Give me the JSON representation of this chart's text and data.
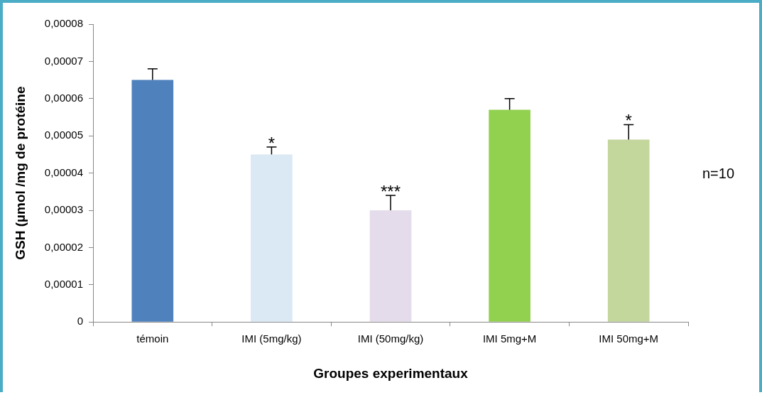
{
  "chart_data": {
    "type": "bar",
    "xlabel": "Groupes experimentaux",
    "ylabel": "GSH (µmol /mg de protéine",
    "categories": [
      "témoin",
      "IMI (5mg/kg)",
      "IMI (50mg/kg)",
      "IMI 5mg+M",
      "IMI 50mg+M"
    ],
    "values": [
      6.5e-05,
      4.5e-05,
      3e-05,
      5.7e-05,
      4.9e-05
    ],
    "colors": [
      "#4f81bd",
      "#dbe9f4",
      "#e4dcea",
      "#92d050",
      "#c3d69b"
    ],
    "errors": [
      [
        6.5e-05,
        6.8e-05
      ],
      [
        4.5e-05,
        4.7e-05
      ],
      [
        3e-05,
        3.4e-05
      ],
      [
        5.7e-05,
        6e-05
      ],
      [
        4.9e-05,
        5.3e-05
      ]
    ],
    "ylim": [
      0,
      8e-05
    ],
    "yticks": [
      0,
      {
        "value": 1e-05,
        "label": "0,00001"
      },
      {
        "value": 2e-05,
        "label": "0,00002"
      },
      {
        "value": 3e-05,
        "label": "0,00003"
      },
      {
        "value": 4e-05,
        "label": "0,00004"
      },
      {
        "value": 5e-05,
        "label": "0,00005"
      },
      {
        "value": 6e-05,
        "label": "0,00006"
      },
      {
        "value": 7e-05,
        "label": "0,00007"
      },
      {
        "value": 8e-05,
        "label": "0,00008"
      }
    ],
    "annotations": [
      {
        "text": "*",
        "x": "IMI (5mg/kg)",
        "y": 4.7e-05
      },
      {
        "text": "***",
        "x": "IMI (50mg/kg)",
        "y": 3.4e-05
      },
      {
        "text": "*",
        "x": "IMI 50mg+M",
        "y": 5.3e-05
      },
      "n=10"
    ],
    "grid": false,
    "legend": false
  }
}
